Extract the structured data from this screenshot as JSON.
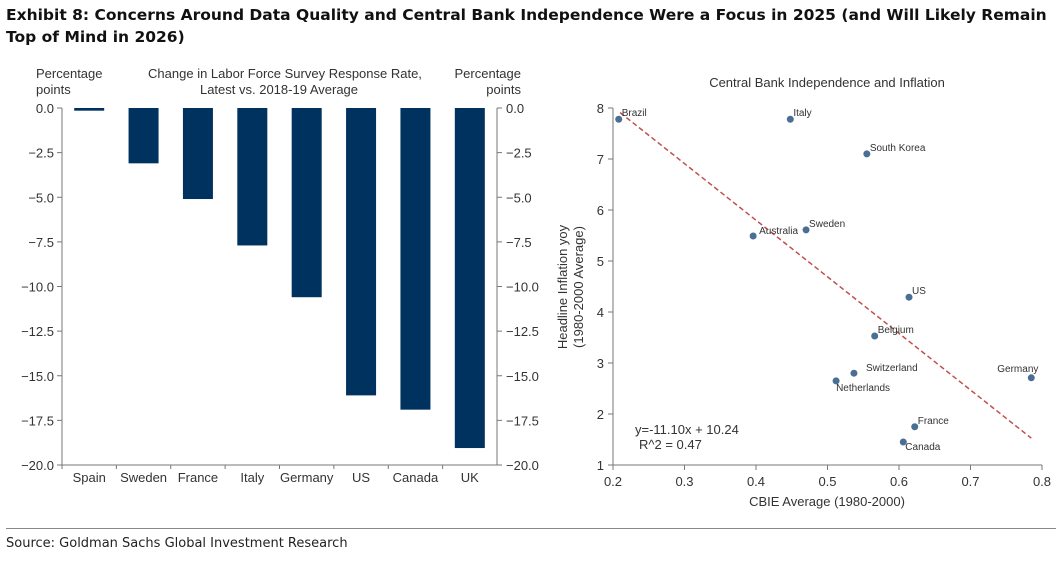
{
  "title": "Exhibit 8: Concerns Around Data Quality and Central Bank Independence Were a Focus in 2025 (and Will Likely Remain Top of Mind in 2026)",
  "source": "Source: Goldman Sachs Global Investment Research",
  "colors": {
    "bar": "#00325F",
    "point": "#4A6F95",
    "trend": "#C0504D"
  },
  "chart_data": [
    {
      "type": "bar",
      "title": "Change in Labor Force Survey Response Rate,",
      "subtitle": "Latest vs. 2018-19 Average",
      "ylabel_left": [
        "Percentage",
        "points"
      ],
      "ylabel_right": [
        "Percentage",
        "points"
      ],
      "categories": [
        "Spain",
        "Sweden",
        "France",
        "Italy",
        "Germany",
        "US",
        "Canada",
        "UK"
      ],
      "values": [
        -0.15,
        -3.1,
        -5.1,
        -7.7,
        -10.6,
        -16.1,
        -16.9,
        -19.05
      ],
      "ylim": [
        -20,
        0
      ],
      "yticks": [
        "0.0",
        "-2.5",
        "-5.0",
        "-7.5",
        "-10.0",
        "-12.5",
        "-15.0",
        "-17.5",
        "-20.0"
      ],
      "grid": false
    },
    {
      "type": "scatter",
      "title": "Central Bank Independence and Inflation",
      "xlabel": "CBIE Average (1980-2000)",
      "ylabel": [
        "Headline Inflation yoy",
        "(1980-2000 Average)"
      ],
      "xlim": [
        0.2,
        0.8
      ],
      "ylim": [
        1,
        8
      ],
      "xticks": [
        "0.2",
        "0.3",
        "0.4",
        "0.5",
        "0.6",
        "0.7",
        "0.8"
      ],
      "yticks": [
        "1",
        "2",
        "3",
        "4",
        "5",
        "6",
        "7",
        "8"
      ],
      "points": [
        {
          "label": "Brazil",
          "x": 0.208,
          "y": 7.78
        },
        {
          "label": "Italy",
          "x": 0.448,
          "y": 7.78
        },
        {
          "label": "South Korea",
          "x": 0.555,
          "y": 7.1
        },
        {
          "label": "Australia",
          "x": 0.396,
          "y": 5.49
        },
        {
          "label": "Sweden",
          "x": 0.47,
          "y": 5.61
        },
        {
          "label": "US",
          "x": 0.614,
          "y": 4.29
        },
        {
          "label": "Belgium",
          "x": 0.566,
          "y": 3.53
        },
        {
          "label": "Switzerland",
          "x": 0.537,
          "y": 2.8
        },
        {
          "label": "Netherlands",
          "x": 0.512,
          "y": 2.65
        },
        {
          "label": "Germany",
          "x": 0.785,
          "y": 2.71
        },
        {
          "label": "France",
          "x": 0.622,
          "y": 1.75
        },
        {
          "label": "Canada",
          "x": 0.606,
          "y": 1.45
        }
      ],
      "trendline": {
        "slope": -11.1,
        "intercept": 10.24,
        "x_range": [
          0.21,
          0.785
        ]
      },
      "equation": "y=-11.10x + 10.24",
      "r2": "R^2 =  0.47",
      "grid": false
    }
  ]
}
